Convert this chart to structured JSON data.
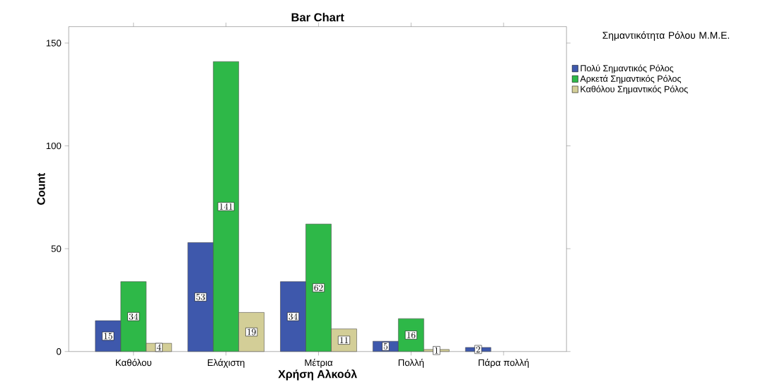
{
  "chart_data": {
    "type": "bar",
    "title": "Bar Chart",
    "xlabel": "Χρήση Αλκοόλ",
    "ylabel": "Count",
    "legend_title": "Σημαντικότητα Ρόλου Μ.Μ.Ε.",
    "categories": [
      "Καθόλου",
      "Ελάχιστη",
      "Μέτρια",
      "Πολλή",
      "Πάρα πολλή"
    ],
    "series": [
      {
        "name": "Πολύ Σημαντικός Ρόλος",
        "color": "#3e58ac",
        "values": [
          15,
          53,
          34,
          5,
          2
        ]
      },
      {
        "name": "Αρκετά Σημαντικός Ρόλος",
        "color": "#2eb848",
        "values": [
          34,
          141,
          62,
          16,
          null
        ]
      },
      {
        "name": "Καθόλου Σημαντικός Ρόλος",
        "color": "#d3ce97",
        "values": [
          4,
          19,
          11,
          1,
          null
        ]
      }
    ],
    "ylim": [
      0,
      158
    ],
    "yticks": [
      0,
      50,
      100,
      150
    ],
    "legend": "right",
    "data_labels": true
  }
}
